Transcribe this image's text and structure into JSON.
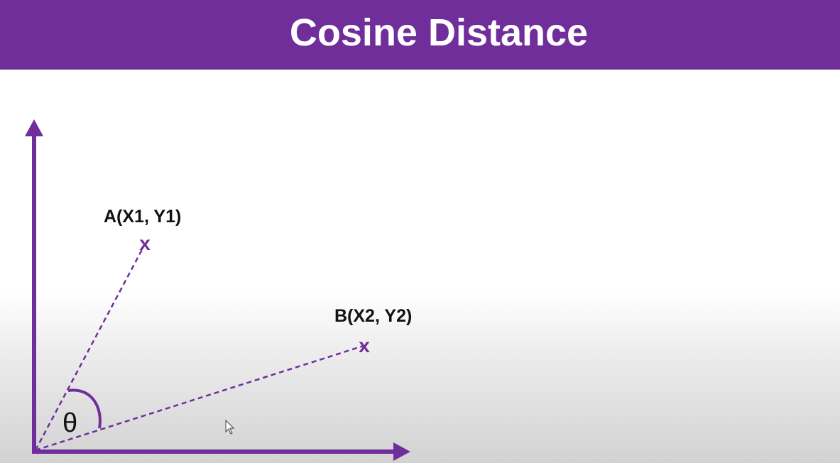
{
  "slide": {
    "title": "Cosine Distance"
  },
  "diagram": {
    "point_a_label": "A(X1, Y1)",
    "point_b_label": "B(X2, Y2)",
    "point_marker": "x",
    "angle_label": "θ"
  },
  "colors": {
    "accent": "#702e9b",
    "text": "#111111",
    "background": "#ffffff"
  }
}
